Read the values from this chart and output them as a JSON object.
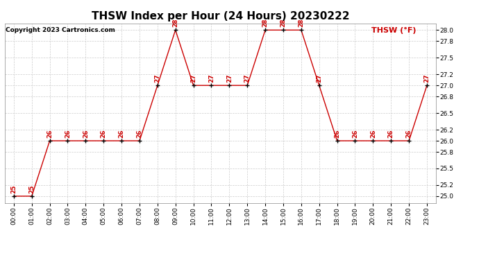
{
  "title": "THSW Index per Hour (24 Hours) 20230222",
  "copyright": "Copyright 2023 Cartronics.com",
  "legend_label": "THSW (°F)",
  "hours": [
    0,
    1,
    2,
    3,
    4,
    5,
    6,
    7,
    8,
    9,
    10,
    11,
    12,
    13,
    14,
    15,
    16,
    17,
    18,
    19,
    20,
    21,
    22,
    23
  ],
  "values": [
    25,
    25,
    26,
    26,
    26,
    26,
    26,
    26,
    27,
    28,
    27,
    27,
    27,
    27,
    28,
    28,
    28,
    27,
    26,
    26,
    26,
    26,
    26,
    27
  ],
  "line_color": "#cc0000",
  "marker_color": "#000000",
  "annotation_color": "#cc0000",
  "background_color": "#ffffff",
  "grid_color": "#cccccc",
  "ylim_min": 24.88,
  "ylim_max": 28.12,
  "yticks": [
    25.0,
    25.2,
    25.5,
    25.8,
    26.0,
    26.2,
    26.5,
    26.8,
    27.0,
    27.2,
    27.5,
    27.8,
    28.0
  ],
  "title_fontsize": 11,
  "annotation_fontsize": 6.5,
  "copyright_fontsize": 6.5,
  "legend_fontsize": 8,
  "tick_fontsize": 6.5,
  "ytick_fontsize": 6.5
}
